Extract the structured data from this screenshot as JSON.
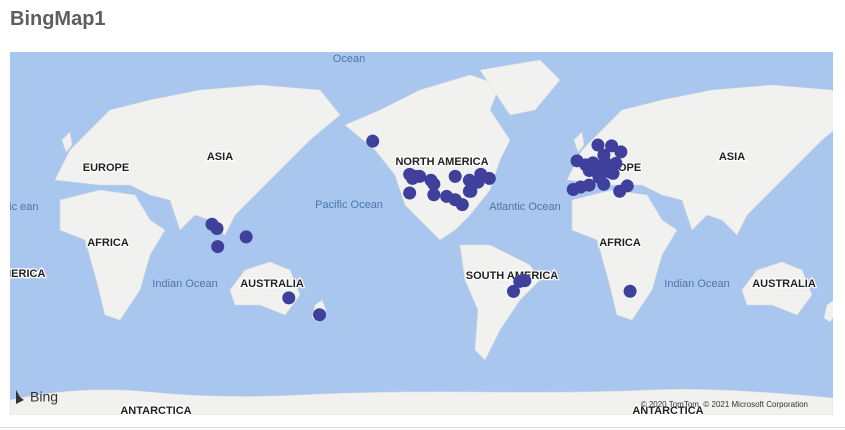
{
  "header": {
    "title": "BingMap1"
  },
  "map": {
    "labels": [
      "Ocean",
      "EUROPE",
      "ASIA",
      "NORTH AMERICA",
      "Pacific Ocean",
      "Atlantic Ocean",
      "AFRICA",
      "SOUTH AMERICA",
      "Indian Ocean",
      "AUSTRALIA",
      "ANTARCTICA",
      "ASIA",
      "AFRICA",
      "Indian Ocean",
      "AUSTRALIA",
      "ANTARCTICA",
      "EUROPE",
      "MERICA",
      "ntic ean"
    ],
    "attribution": "© 2020 TomTom, © 2021 Microsoft Corporation",
    "logo": "Bing",
    "points": [
      {
        "lon": -150,
        "lat": 61
      },
      {
        "lon": -124,
        "lat": 47
      },
      {
        "lon": -122,
        "lat": 45
      },
      {
        "lon": -120,
        "lat": 46
      },
      {
        "lon": -124,
        "lat": 37
      },
      {
        "lon": -117,
        "lat": 46
      },
      {
        "lon": -109,
        "lat": 44
      },
      {
        "lon": -107,
        "lat": 42
      },
      {
        "lon": -92,
        "lat": 46
      },
      {
        "lon": -107,
        "lat": 36
      },
      {
        "lon": -98,
        "lat": 35
      },
      {
        "lon": -92,
        "lat": 33
      },
      {
        "lon": -82,
        "lat": 44
      },
      {
        "lon": -82,
        "lat": 38
      },
      {
        "lon": -74,
        "lat": 47
      },
      {
        "lon": -76,
        "lat": 43
      },
      {
        "lon": -81,
        "lat": 38
      },
      {
        "lon": -68,
        "lat": 45
      },
      {
        "lon": -87,
        "lat": 30
      },
      {
        "lon": -9,
        "lat": 39
      },
      {
        "lon": -0.1,
        "lat": 51.5
      },
      {
        "lon": 2.3,
        "lat": 48.9
      },
      {
        "lon": 4.9,
        "lat": 52.4
      },
      {
        "lon": 8.7,
        "lat": 50.1
      },
      {
        "lon": 13.4,
        "lat": 52.5
      },
      {
        "lon": 11.6,
        "lat": 48.1
      },
      {
        "lon": 16.4,
        "lat": 48.2
      },
      {
        "lon": 9.2,
        "lat": 45.5
      },
      {
        "lon": 12.5,
        "lat": 41.9
      },
      {
        "lon": -3.7,
        "lat": 40.4
      },
      {
        "lon": 2.2,
        "lat": 41.4
      },
      {
        "lon": 4.4,
        "lat": 50.8
      },
      {
        "lon": 12.6,
        "lat": 55.7
      },
      {
        "lon": 18,
        "lat": 59.3
      },
      {
        "lon": 21,
        "lat": 52.2
      },
      {
        "lon": 19,
        "lat": 47.5
      },
      {
        "lon": -6.3,
        "lat": 53.3
      },
      {
        "lon": 8.5,
        "lat": 47.4
      },
      {
        "lon": 8.4,
        "lat": 59.6
      },
      {
        "lon": 24.5,
        "lat": 57
      },
      {
        "lon": 23.7,
        "lat": 38
      },
      {
        "lon": 29,
        "lat": 41
      },
      {
        "lon": 97,
        "lat": 17
      },
      {
        "lon": 100.5,
        "lat": 14
      },
      {
        "lon": 101,
        "lat": 1
      },
      {
        "lon": 121,
        "lat": 8
      },
      {
        "lon": 151,
        "lat": -34
      },
      {
        "lon": 172.6,
        "lat": -43.5
      },
      {
        "lon": -43,
        "lat": -23
      },
      {
        "lon": -46.6,
        "lat": -23.5
      },
      {
        "lon": -51,
        "lat": -30
      },
      {
        "lon": 31,
        "lat": -29.9
      }
    ]
  }
}
